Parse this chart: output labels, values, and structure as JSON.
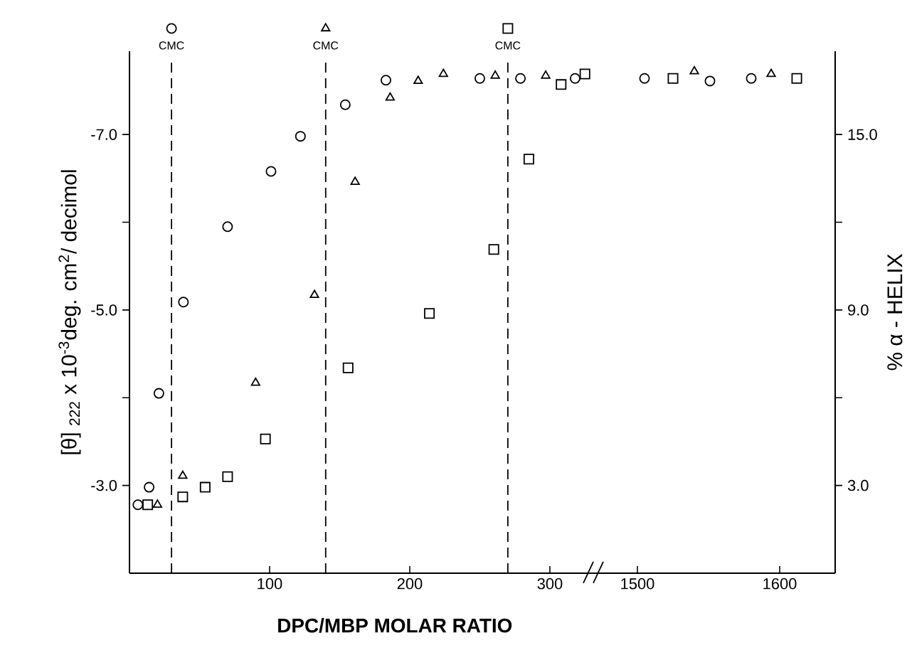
{
  "chart_data": [
    {
      "type": "scatter",
      "xlabel": "DPC/MBP MOLAR RATIO",
      "ylabel": "[θ] $_{222}$ x 10$^{-3}$deg. cm$^{2}$/ decimol",
      "xlim": [
        0,
        332
      ],
      "xticks": [
        100,
        200,
        300
      ],
      "ylim": [
        -2,
        -7.95
      ],
      "yticks": [
        {
          "value": -3,
          "label": "-3.0"
        },
        {
          "value": -4,
          "label": null
        },
        {
          "value": -5,
          "label": "-5.0"
        },
        {
          "value": -6,
          "label": null
        },
        {
          "value": -7,
          "label": "-7.0"
        }
      ],
      "ref_lines": [
        {
          "axis": "x",
          "value": 30,
          "label": "CMC",
          "line_style": "dashed"
        },
        {
          "axis": "x",
          "value": 140,
          "label": "CMC",
          "line_style": "dashed"
        },
        {
          "axis": "x",
          "value": 270,
          "label": "CMC",
          "line_style": "dashed"
        }
      ],
      "series": [
        {
          "color": "#000000",
          "marker": "circle",
          "x": [
            6,
            14,
            21,
            38.5,
            70,
            101,
            122,
            154,
            183,
            250,
            279,
            318
          ],
          "values": [
            -2.78,
            -2.98,
            -4.05,
            -5.09,
            -5.95,
            -6.58,
            -6.98,
            -7.34,
            -7.62,
            -7.64,
            -7.64,
            -7.64
          ]
        },
        {
          "color": "#000000",
          "marker": "triangle",
          "x": [
            20,
            38,
            90,
            132,
            161,
            186,
            206,
            224,
            261,
            297
          ],
          "values": [
            -2.78,
            -3.11,
            -4.17,
            -5.17,
            -6.46,
            -7.42,
            -7.61,
            -7.69,
            -7.67,
            -7.67
          ]
        },
        {
          "color": "#000000",
          "marker": "square",
          "x": [
            13,
            38,
            54,
            70,
            97,
            156,
            214,
            260,
            285,
            308,
            325
          ],
          "values": [
            -2.78,
            -2.87,
            -2.98,
            -3.1,
            -3.53,
            -4.34,
            -4.96,
            -5.69,
            -6.72,
            -7.57,
            -7.69
          ]
        }
      ]
    },
    {
      "type": "scatter",
      "y2label": "% α - HELIX",
      "tick_labels": "x",
      "xlim": [
        1470,
        1639
      ],
      "xticks": [
        1500,
        1600
      ],
      "ylim": [
        -2,
        -7.95
      ],
      "y2lim": [
        0,
        17.85
      ],
      "y2ticks": [
        {
          "value": 3,
          "label": "3.0"
        },
        {
          "value": 6,
          "label": null
        },
        {
          "value": 9,
          "label": "9.0"
        },
        {
          "value": 12,
          "label": null
        },
        {
          "value": 15,
          "label": "15.0"
        }
      ],
      "series": [
        {
          "color": "#000000",
          "marker": "circle",
          "x": [
            1505,
            1551,
            1580
          ],
          "values": [
            -7.64,
            -7.61,
            -7.64
          ]
        },
        {
          "color": "#000000",
          "marker": "triangle",
          "x": [
            1540,
            1594
          ],
          "values": [
            -7.72,
            -7.69
          ]
        },
        {
          "color": "#000000",
          "marker": "square",
          "x": [
            1525,
            1612
          ],
          "values": [
            -7.64,
            -7.64
          ]
        }
      ]
    }
  ]
}
